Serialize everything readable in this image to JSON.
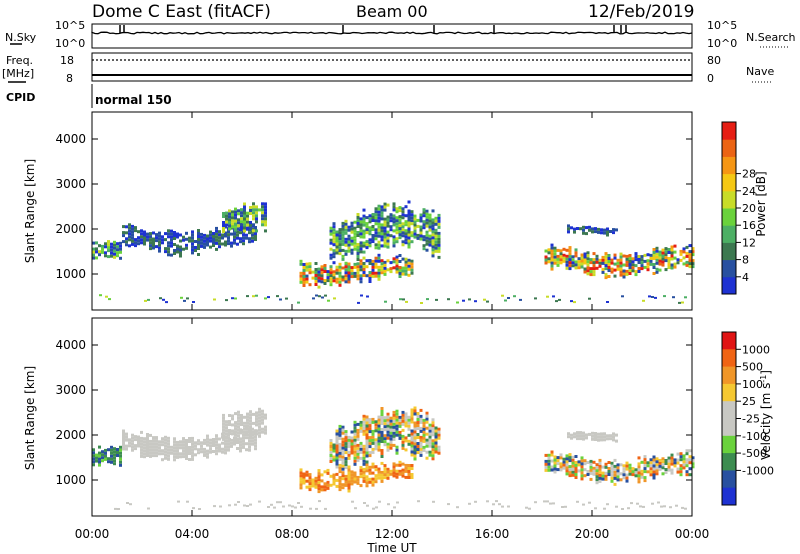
{
  "header": {
    "station": "Dome C East (fitACF)",
    "beam": "Beam 00",
    "date": "12/Feb/2019"
  },
  "noise_panel": {
    "left_label": "N.Sky",
    "right_label": "N.Search",
    "tick_top": "10^5",
    "tick_bottom": "10^0"
  },
  "freq_panel": {
    "left_label_1": "Freq.",
    "left_label_2": "[MHz]",
    "left_ticks": [
      "18",
      "8"
    ],
    "right_ticks": [
      "80",
      "0"
    ],
    "right_label": "Nave",
    "cpid_label": "CPID",
    "mode": "normal 150"
  },
  "colors": {
    "power": [
      "#1e32d2",
      "#2850a0",
      "#3c7850",
      "#4caf64",
      "#6ad23c",
      "#c8dc28",
      "#f5c814",
      "#f59614",
      "#eb6414",
      "#e61e14"
    ],
    "velocity": [
      "#e01414",
      "#f06414",
      "#f09628",
      "#f5c832",
      "#c8c8c3",
      "#c8c8c3",
      "#6ad23c",
      "#3c8c50",
      "#2850a0",
      "#1e32d2"
    ]
  },
  "chart_data": [
    {
      "type": "heatmap",
      "name": "power",
      "ylabel": "Slant Range [km]",
      "yticks": [
        "1000",
        "2000",
        "3000",
        "4000"
      ],
      "ylim": [
        200,
        4600
      ],
      "xlim": [
        0,
        24
      ],
      "colorbar_label": "Power [dB]",
      "colorbar_ticks": [
        "4",
        "8",
        "12",
        "16",
        "20",
        "24",
        "28"
      ],
      "colorbar_range": [
        0,
        32
      ],
      "echo_bands": [
        {
          "t_start": 0.0,
          "t_end": 1.2,
          "r_min": 1250,
          "r_max": 1700,
          "level": "mid"
        },
        {
          "t_start": 1.2,
          "t_end": 6.5,
          "r_min": 1500,
          "r_max": 2100,
          "level": "low"
        },
        {
          "t_start": 5.2,
          "t_end": 7.0,
          "r_min": 1800,
          "r_max": 2500,
          "level": "mid"
        },
        {
          "t_start": 8.3,
          "t_end": 12.8,
          "r_min": 800,
          "r_max": 1400,
          "level": "high"
        },
        {
          "t_start": 9.5,
          "t_end": 13.9,
          "r_min": 1300,
          "r_max": 2500,
          "level": "mid"
        },
        {
          "t_start": 18.1,
          "t_end": 24.0,
          "r_min": 1000,
          "r_max": 1600,
          "level": "high"
        },
        {
          "t_start": 19.0,
          "t_end": 21.0,
          "r_min": 1900,
          "r_max": 2100,
          "level": "low"
        }
      ]
    },
    {
      "type": "heatmap",
      "name": "velocity",
      "ylabel": "Slant Range [km]",
      "yticks": [
        "1000",
        "2000",
        "3000",
        "4000"
      ],
      "ylim": [
        200,
        4600
      ],
      "xlim": [
        0,
        24
      ],
      "xlabel": "Time UT",
      "xticks": [
        "00:00",
        "04:00",
        "08:00",
        "12:00",
        "16:00",
        "20:00",
        "00:00"
      ],
      "colorbar_label": "Velocity [m s",
      "colorbar_unit_exp": "-1",
      "colorbar_ticks": [
        "1000",
        "500",
        "100",
        "25",
        "-25",
        "-100",
        "-500",
        "-1000"
      ],
      "echo_bands": [
        {
          "t_start": 0.0,
          "t_end": 1.2,
          "r_min": 1250,
          "r_max": 1700,
          "level": "pos"
        },
        {
          "t_start": 1.2,
          "t_end": 6.5,
          "r_min": 1500,
          "r_max": 2100,
          "level": "zero"
        },
        {
          "t_start": 5.2,
          "t_end": 7.0,
          "r_min": 1800,
          "r_max": 2500,
          "level": "zero"
        },
        {
          "t_start": 8.3,
          "t_end": 12.8,
          "r_min": 800,
          "r_max": 1400,
          "level": "neg"
        },
        {
          "t_start": 9.5,
          "t_end": 13.9,
          "r_min": 1300,
          "r_max": 2500,
          "level": "mixed"
        },
        {
          "t_start": 18.1,
          "t_end": 24.0,
          "r_min": 1000,
          "r_max": 1600,
          "level": "mixed"
        },
        {
          "t_start": 19.0,
          "t_end": 21.0,
          "r_min": 1900,
          "r_max": 2100,
          "level": "zero"
        }
      ]
    }
  ]
}
